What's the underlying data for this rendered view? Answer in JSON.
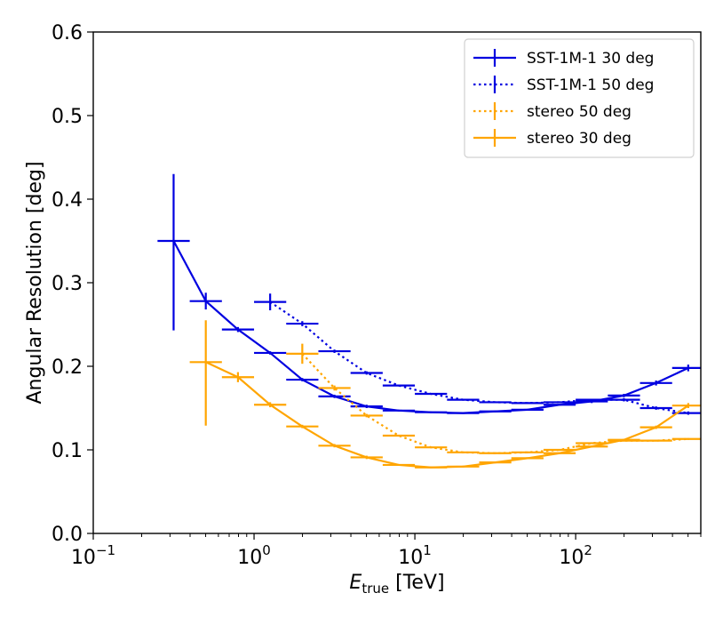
{
  "chart_data": {
    "type": "line",
    "title": "",
    "xlabel": {
      "main": "E",
      "sub": "true",
      "rest": " [TeV]"
    },
    "ylabel": "Angular Resolution [deg]",
    "xscale": "log",
    "xlim": [
      0.1,
      600
    ],
    "ylim": [
      0.0,
      0.6
    ],
    "grid": false,
    "legend_position": "top-right",
    "xticks": [
      {
        "value": 0.1,
        "base": "10",
        "exp": "−1"
      },
      {
        "value": 1,
        "base": "10",
        "exp": "0"
      },
      {
        "value": 10,
        "base": "10",
        "exp": "1"
      },
      {
        "value": 100,
        "base": "10",
        "exp": "2"
      }
    ],
    "yticks": [
      "0.0",
      "0.1",
      "0.2",
      "0.3",
      "0.4",
      "0.5",
      "0.6"
    ],
    "series": [
      {
        "name": "SST-1M-1 30 deg",
        "color": "#0000e0",
        "linestyle": "solid",
        "points": [
          {
            "x": 0.316,
            "y": 0.35,
            "xlo": 0.251,
            "xhi": 0.398,
            "yerr": [
              0.107,
              0.08
            ]
          },
          {
            "x": 0.501,
            "y": 0.278,
            "xlo": 0.398,
            "xhi": 0.631,
            "yerr": [
              0.01,
              0.01
            ]
          },
          {
            "x": 0.794,
            "y": 0.244,
            "xlo": 0.631,
            "xhi": 1.0,
            "yerr": [
              0.003,
              0.003
            ]
          },
          {
            "x": 1.259,
            "y": 0.216,
            "xlo": 1.0,
            "xhi": 1.585,
            "yerr": [
              0.002,
              0.002
            ]
          },
          {
            "x": 1.995,
            "y": 0.184,
            "xlo": 1.585,
            "xhi": 2.512,
            "yerr": [
              0.002,
              0.002
            ]
          },
          {
            "x": 3.162,
            "y": 0.164,
            "xlo": 2.512,
            "xhi": 3.981,
            "yerr": [
              0.002,
              0.002
            ]
          },
          {
            "x": 5.012,
            "y": 0.152,
            "xlo": 3.981,
            "xhi": 6.31,
            "yerr": [
              0.002,
              0.002
            ]
          },
          {
            "x": 7.943,
            "y": 0.147,
            "xlo": 6.31,
            "xhi": 10.0,
            "yerr": [
              0.001,
              0.001
            ]
          },
          {
            "x": 12.59,
            "y": 0.145,
            "xlo": 10.0,
            "xhi": 15.85,
            "yerr": [
              0.001,
              0.001
            ]
          },
          {
            "x": 19.95,
            "y": 0.144,
            "xlo": 15.85,
            "xhi": 25.12,
            "yerr": [
              0.001,
              0.001
            ]
          },
          {
            "x": 31.62,
            "y": 0.146,
            "xlo": 25.12,
            "xhi": 39.81,
            "yerr": [
              0.001,
              0.001
            ]
          },
          {
            "x": 50.12,
            "y": 0.148,
            "xlo": 39.81,
            "xhi": 63.1,
            "yerr": [
              0.001,
              0.001
            ]
          },
          {
            "x": 79.43,
            "y": 0.154,
            "xlo": 63.1,
            "xhi": 100.0,
            "yerr": [
              0.001,
              0.001
            ]
          },
          {
            "x": 125.9,
            "y": 0.158,
            "xlo": 100.0,
            "xhi": 158.5,
            "yerr": [
              0.002,
              0.002
            ]
          },
          {
            "x": 199.5,
            "y": 0.165,
            "xlo": 158.5,
            "xhi": 251.2,
            "yerr": [
              0.002,
              0.002
            ]
          },
          {
            "x": 316.2,
            "y": 0.18,
            "xlo": 251.2,
            "xhi": 398.1,
            "yerr": [
              0.003,
              0.003
            ]
          },
          {
            "x": 501.2,
            "y": 0.198,
            "xlo": 398.1,
            "xhi": 631.0,
            "yerr": [
              0.004,
              0.004
            ]
          }
        ]
      },
      {
        "name": "SST-1M-1 50 deg",
        "color": "#0000e0",
        "linestyle": "dotted",
        "points": [
          {
            "x": 1.259,
            "y": 0.277,
            "xlo": 1.0,
            "xhi": 1.585,
            "yerr": [
              0.01,
              0.01
            ]
          },
          {
            "x": 1.995,
            "y": 0.251,
            "xlo": 1.585,
            "xhi": 2.512,
            "yerr": [
              0.003,
              0.003
            ]
          },
          {
            "x": 3.162,
            "y": 0.218,
            "xlo": 2.512,
            "xhi": 3.981,
            "yerr": [
              0.002,
              0.002
            ]
          },
          {
            "x": 5.012,
            "y": 0.192,
            "xlo": 3.981,
            "xhi": 6.31,
            "yerr": [
              0.002,
              0.002
            ]
          },
          {
            "x": 7.943,
            "y": 0.177,
            "xlo": 6.31,
            "xhi": 10.0,
            "yerr": [
              0.001,
              0.001
            ]
          },
          {
            "x": 12.59,
            "y": 0.167,
            "xlo": 10.0,
            "xhi": 15.85,
            "yerr": [
              0.001,
              0.001
            ]
          },
          {
            "x": 19.95,
            "y": 0.16,
            "xlo": 15.85,
            "xhi": 25.12,
            "yerr": [
              0.001,
              0.001
            ]
          },
          {
            "x": 31.62,
            "y": 0.157,
            "xlo": 25.12,
            "xhi": 39.81,
            "yerr": [
              0.001,
              0.001
            ]
          },
          {
            "x": 50.12,
            "y": 0.156,
            "xlo": 39.81,
            "xhi": 63.1,
            "yerr": [
              0.001,
              0.001
            ]
          },
          {
            "x": 79.43,
            "y": 0.157,
            "xlo": 63.1,
            "xhi": 100.0,
            "yerr": [
              0.001,
              0.001
            ]
          },
          {
            "x": 125.9,
            "y": 0.16,
            "xlo": 100.0,
            "xhi": 158.5,
            "yerr": [
              0.001,
              0.001
            ]
          },
          {
            "x": 199.5,
            "y": 0.16,
            "xlo": 158.5,
            "xhi": 251.2,
            "yerr": [
              0.002,
              0.002
            ]
          },
          {
            "x": 316.2,
            "y": 0.15,
            "xlo": 251.2,
            "xhi": 398.1,
            "yerr": [
              0.002,
              0.002
            ]
          },
          {
            "x": 501.2,
            "y": 0.144,
            "xlo": 398.1,
            "xhi": 631.0,
            "yerr": [
              0.002,
              0.002
            ]
          }
        ]
      },
      {
        "name": "stereo 50 deg",
        "color": "#ffa500",
        "linestyle": "dotted",
        "points": [
          {
            "x": 1.995,
            "y": 0.215,
            "xlo": 1.585,
            "xhi": 2.512,
            "yerr": [
              0.012,
              0.012
            ]
          },
          {
            "x": 3.162,
            "y": 0.174,
            "xlo": 2.512,
            "xhi": 3.981,
            "yerr": [
              0.003,
              0.003
            ]
          },
          {
            "x": 5.012,
            "y": 0.141,
            "xlo": 3.981,
            "xhi": 6.31,
            "yerr": [
              0.002,
              0.002
            ]
          },
          {
            "x": 7.943,
            "y": 0.117,
            "xlo": 6.31,
            "xhi": 10.0,
            "yerr": [
              0.001,
              0.001
            ]
          },
          {
            "x": 12.59,
            "y": 0.103,
            "xlo": 10.0,
            "xhi": 15.85,
            "yerr": [
              0.001,
              0.001
            ]
          },
          {
            "x": 19.95,
            "y": 0.097,
            "xlo": 15.85,
            "xhi": 25.12,
            "yerr": [
              0.001,
              0.001
            ]
          },
          {
            "x": 31.62,
            "y": 0.096,
            "xlo": 25.12,
            "xhi": 39.81,
            "yerr": [
              0.001,
              0.001
            ]
          },
          {
            "x": 50.12,
            "y": 0.097,
            "xlo": 39.81,
            "xhi": 63.1,
            "yerr": [
              0.001,
              0.001
            ]
          },
          {
            "x": 79.43,
            "y": 0.1,
            "xlo": 63.1,
            "xhi": 100.0,
            "yerr": [
              0.001,
              0.001
            ]
          },
          {
            "x": 125.9,
            "y": 0.108,
            "xlo": 100.0,
            "xhi": 158.5,
            "yerr": [
              0.001,
              0.001
            ]
          },
          {
            "x": 199.5,
            "y": 0.111,
            "xlo": 158.5,
            "xhi": 251.2,
            "yerr": [
              0.001,
              0.001
            ]
          },
          {
            "x": 316.2,
            "y": 0.111,
            "xlo": 251.2,
            "xhi": 398.1,
            "yerr": [
              0.001,
              0.001
            ]
          },
          {
            "x": 501.2,
            "y": 0.113,
            "xlo": 398.1,
            "xhi": 631.0,
            "yerr": [
              0.001,
              0.001
            ]
          }
        ]
      },
      {
        "name": "stereo 30 deg",
        "color": "#ffa500",
        "linestyle": "solid",
        "points": [
          {
            "x": 0.501,
            "y": 0.205,
            "xlo": 0.398,
            "xhi": 0.631,
            "yerr": [
              0.076,
              0.05
            ]
          },
          {
            "x": 0.794,
            "y": 0.187,
            "xlo": 0.631,
            "xhi": 1.0,
            "yerr": [
              0.006,
              0.006
            ]
          },
          {
            "x": 1.259,
            "y": 0.154,
            "xlo": 1.0,
            "xhi": 1.585,
            "yerr": [
              0.003,
              0.003
            ]
          },
          {
            "x": 1.995,
            "y": 0.128,
            "xlo": 1.585,
            "xhi": 2.512,
            "yerr": [
              0.002,
              0.002
            ]
          },
          {
            "x": 3.162,
            "y": 0.105,
            "xlo": 2.512,
            "xhi": 3.981,
            "yerr": [
              0.002,
              0.002
            ]
          },
          {
            "x": 5.012,
            "y": 0.091,
            "xlo": 3.981,
            "xhi": 6.31,
            "yerr": [
              0.002,
              0.002
            ]
          },
          {
            "x": 7.943,
            "y": 0.082,
            "xlo": 6.31,
            "xhi": 10.0,
            "yerr": [
              0.001,
              0.001
            ]
          },
          {
            "x": 12.59,
            "y": 0.079,
            "xlo": 10.0,
            "xhi": 15.85,
            "yerr": [
              0.001,
              0.001
            ]
          },
          {
            "x": 19.95,
            "y": 0.08,
            "xlo": 15.85,
            "xhi": 25.12,
            "yerr": [
              0.001,
              0.001
            ]
          },
          {
            "x": 31.62,
            "y": 0.085,
            "xlo": 25.12,
            "xhi": 39.81,
            "yerr": [
              0.001,
              0.001
            ]
          },
          {
            "x": 50.12,
            "y": 0.09,
            "xlo": 39.81,
            "xhi": 63.1,
            "yerr": [
              0.001,
              0.001
            ]
          },
          {
            "x": 79.43,
            "y": 0.096,
            "xlo": 63.1,
            "xhi": 100.0,
            "yerr": [
              0.001,
              0.001
            ]
          },
          {
            "x": 125.9,
            "y": 0.104,
            "xlo": 100.0,
            "xhi": 158.5,
            "yerr": [
              0.001,
              0.001
            ]
          },
          {
            "x": 199.5,
            "y": 0.112,
            "xlo": 158.5,
            "xhi": 251.2,
            "yerr": [
              0.001,
              0.001
            ]
          },
          {
            "x": 316.2,
            "y": 0.127,
            "xlo": 251.2,
            "xhi": 398.1,
            "yerr": [
              0.002,
              0.002
            ]
          },
          {
            "x": 501.2,
            "y": 0.153,
            "xlo": 398.1,
            "xhi": 631.0,
            "yerr": [
              0.003,
              0.003
            ]
          }
        ]
      }
    ]
  }
}
